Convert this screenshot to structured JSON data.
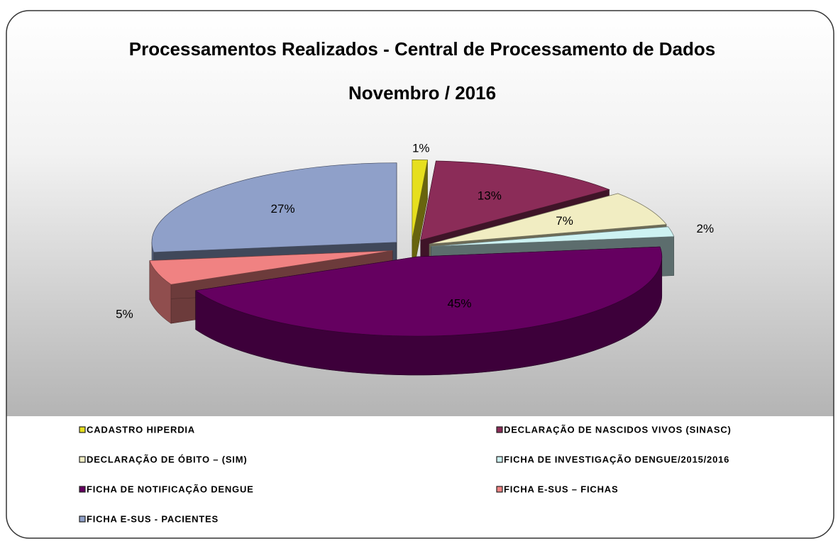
{
  "chart_data": {
    "type": "pie",
    "title": "Processamentos Realizados - Central de Processamento de Dados",
    "subtitle": "Novembro / 2016",
    "categories": [
      "CADASTRO HIPERDIA",
      "DECLARAÇÃO DE NASCIDOS VIVOS (SINASC)",
      "DECLARAÇÃO DE ÓBITO – (SIM)",
      "FICHA DE INVESTIGAÇÃO DENGUE/2015/2016",
      "FICHA DE NOTIFICAÇÃO DENGUE",
      "FICHA E-SUS – FICHAS",
      "FICHA E-SUS - PACIENTES"
    ],
    "values": [
      1,
      13,
      7,
      2,
      45,
      5,
      27
    ],
    "value_labels": [
      "1%",
      "13%",
      "7%",
      "2%",
      "45%",
      "5%",
      "27%"
    ],
    "colors": [
      "#e6df1e",
      "#8b2c58",
      "#f1edc2",
      "#cdf2f2",
      "#650060",
      "#f08282",
      "#8fa0c9"
    ],
    "legend": "bottom"
  }
}
